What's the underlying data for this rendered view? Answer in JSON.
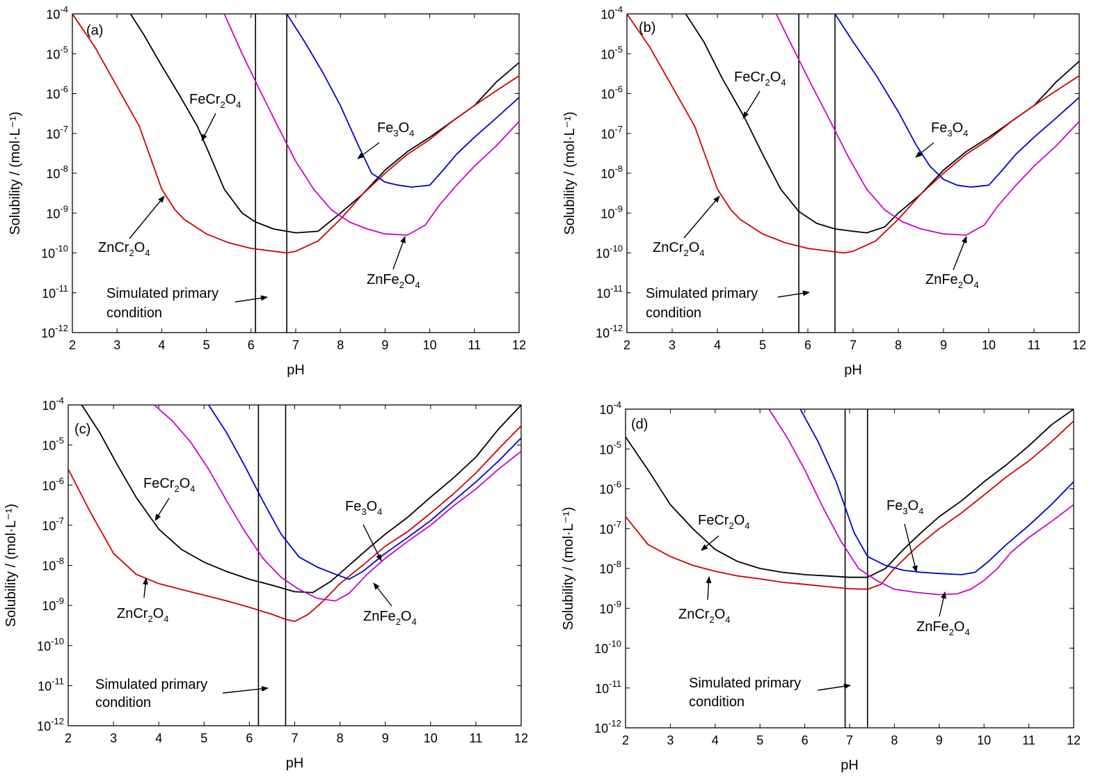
{
  "chart_data": [
    {
      "type": "line",
      "panel": "(a)",
      "xlabel": "pH",
      "ylabel": "Solubility / (mol·L⁻¹)",
      "xlim": [
        2,
        12
      ],
      "ylim": [
        1e-12,
        0.0001
      ],
      "y_scale": "log",
      "x_ticks": [
        "2",
        "3",
        "4",
        "5",
        "6",
        "7",
        "8",
        "9",
        "10",
        "11",
        "12"
      ],
      "y_ticks": [
        "10-12",
        "10-11",
        "10-10",
        "10-9",
        "10-8",
        "10-7",
        "10-6",
        "10-5",
        "10-4"
      ],
      "vlines": [
        6.1,
        6.8
      ],
      "series": [
        {
          "name": "FeCr2O4",
          "color": "#000000",
          "x": [
            3.3,
            3.6,
            4,
            4.4,
            4.8,
            5.1,
            5.4,
            5.8,
            6.1,
            6.5,
            7,
            7.5,
            8,
            8.5,
            9,
            9.5,
            10,
            10.5,
            11,
            11.5,
            12
          ],
          "y": [
            0.0001,
            3e-05,
            5e-06,
            9e-07,
            1.5e-07,
            2.5e-08,
            4e-09,
            1e-09,
            6e-10,
            4e-10,
            3.2e-10,
            3.5e-10,
            1e-09,
            3e-09,
            1.2e-08,
            3.5e-08,
            8e-08,
            2e-07,
            5e-07,
            2e-06,
            6e-06
          ]
        },
        {
          "name": "ZnCr2O4",
          "color": "#cc0000",
          "x": [
            2,
            2.5,
            3,
            3.5,
            4,
            4.3,
            4.5,
            5,
            5.5,
            6,
            6.5,
            6.8,
            7,
            7.5,
            8,
            8.5,
            9,
            9.5,
            10,
            10.5,
            11,
            11.5,
            12
          ],
          "y": [
            0.0001,
            1.5e-05,
            1.5e-06,
            1.5e-07,
            4e-09,
            1.2e-09,
            7e-10,
            3e-10,
            1.8e-10,
            1.3e-10,
            1.1e-10,
            1e-10,
            1.1e-10,
            2e-10,
            7e-10,
            3e-09,
            1e-08,
            3e-08,
            7e-08,
            2e-07,
            5e-07,
            1.2e-06,
            2.8e-06
          ]
        },
        {
          "name": "ZnFe2O4",
          "color": "#cc00cc",
          "x": [
            5.4,
            5.8,
            6.2,
            6.6,
            7,
            7.4,
            7.8,
            8.2,
            8.6,
            9,
            9.5,
            9.9,
            10.2,
            10.6,
            11,
            11.5,
            12
          ],
          "y": [
            0.0001,
            1e-05,
            1.2e-06,
            1.5e-07,
            2e-08,
            4e-09,
            1.2e-09,
            6e-10,
            4e-10,
            3e-10,
            2.8e-10,
            5e-10,
            1.5e-09,
            5e-09,
            1.5e-08,
            5e-08,
            2e-07
          ]
        },
        {
          "name": "Fe3O4",
          "color": "#0000cc",
          "x": [
            6.8,
            7.2,
            7.6,
            8,
            8.4,
            8.7,
            9,
            9.3,
            9.6,
            10,
            10.3,
            10.6,
            11,
            11.5,
            12
          ],
          "y": [
            0.0001,
            2e-05,
            3.5e-06,
            5e-07,
            5e-08,
            1e-08,
            6e-09,
            5e-09,
            4.5e-09,
            5e-09,
            1.2e-08,
            3e-08,
            8e-08,
            2.5e-07,
            8e-07
          ]
        }
      ],
      "annotations": {
        "fecr2o4": {
          "main": "FeCr",
          "s1": "2",
          "mid": "O",
          "s2": "4"
        },
        "fe3o4": {
          "main": "Fe",
          "s1": "3",
          "mid": "O",
          "s2": "4"
        },
        "zncr2o4": {
          "main": "ZnCr",
          "s1": "2",
          "mid": "O",
          "s2": "4"
        },
        "znfe2o4": {
          "main": "ZnFe",
          "s1": "2",
          "mid": "O",
          "s2": "4"
        },
        "simulated_line1": "Simulated primary",
        "simulated_line2": "condition"
      }
    },
    {
      "type": "line",
      "panel": "(b)",
      "xlabel": "pH",
      "ylabel": "Solubility / (mol·L⁻¹)",
      "xlim": [
        2,
        12
      ],
      "ylim": [
        1e-12,
        0.0001
      ],
      "y_scale": "log",
      "x_ticks": [
        "2",
        "3",
        "4",
        "5",
        "6",
        "7",
        "8",
        "9",
        "10",
        "11",
        "12"
      ],
      "y_ticks": [
        "10-12",
        "10-11",
        "10-10",
        "10-9",
        "10-8",
        "10-7",
        "10-6",
        "10-5",
        "10-4"
      ],
      "vlines": [
        5.8,
        6.6
      ],
      "series": [
        {
          "name": "FeCr2O4",
          "color": "#000000",
          "x": [
            3.3,
            3.7,
            4.1,
            4.6,
            5,
            5.4,
            5.8,
            6.2,
            6.6,
            7,
            7.3,
            7.7,
            8,
            8.5,
            9,
            9.5,
            10,
            10.5,
            11,
            11.5,
            12
          ],
          "y": [
            0.0001,
            2e-05,
            2.5e-06,
            2.5e-07,
            3e-08,
            4e-09,
            1.1e-09,
            5.5e-10,
            4e-10,
            3.5e-10,
            3.2e-10,
            4.5e-10,
            1e-09,
            3e-09,
            1.2e-08,
            3.5e-08,
            8e-08,
            2e-07,
            5e-07,
            2e-06,
            6.5e-06
          ]
        },
        {
          "name": "ZnCr2O4",
          "color": "#cc0000",
          "x": [
            2,
            2.5,
            3,
            3.5,
            4,
            4.3,
            4.5,
            5,
            5.5,
            6,
            6.5,
            6.8,
            7,
            7.5,
            8,
            8.5,
            9,
            9.5,
            10,
            10.5,
            11,
            11.5,
            12
          ],
          "y": [
            0.0001,
            1.5e-05,
            1.5e-06,
            1.5e-07,
            4e-09,
            1.2e-09,
            7e-10,
            3e-10,
            1.8e-10,
            1.3e-10,
            1.1e-10,
            1e-10,
            1.1e-10,
            2e-10,
            7e-10,
            3e-09,
            1e-08,
            3e-08,
            7e-08,
            2e-07,
            5e-07,
            1.2e-06,
            2.8e-06
          ]
        },
        {
          "name": "ZnFe2O4",
          "color": "#cc00cc",
          "x": [
            5.3,
            5.7,
            6.1,
            6.5,
            6.9,
            7.3,
            7.7,
            8.1,
            8.5,
            9,
            9.5,
            9.9,
            10.2,
            10.6,
            11,
            11.5,
            12
          ],
          "y": [
            0.0001,
            1.2e-05,
            1.5e-06,
            2e-07,
            2.5e-08,
            4e-09,
            1.2e-09,
            6e-10,
            4e-10,
            3e-10,
            2.8e-10,
            5e-10,
            1.5e-09,
            5e-09,
            1.5e-08,
            5e-08,
            2e-07
          ]
        },
        {
          "name": "Fe3O4",
          "color": "#0000cc",
          "x": [
            6.6,
            7,
            7.5,
            8,
            8.4,
            8.7,
            9,
            9.3,
            9.6,
            10,
            10.3,
            10.6,
            11,
            11.5,
            12
          ],
          "y": [
            0.0001,
            2e-05,
            3e-06,
            3.5e-07,
            5e-08,
            1.5e-08,
            7e-09,
            5e-09,
            4.5e-09,
            5e-09,
            1.2e-08,
            3e-08,
            8e-08,
            2.5e-07,
            8e-07
          ]
        }
      ],
      "annotations": {
        "fecr2o4": {
          "main": "FeCr",
          "s1": "2",
          "mid": "O",
          "s2": "4"
        },
        "fe3o4": {
          "main": "Fe",
          "s1": "3",
          "mid": "O",
          "s2": "4"
        },
        "zncr2o4": {
          "main": "ZnCr",
          "s1": "2",
          "mid": "O",
          "s2": "4"
        },
        "znfe2o4": {
          "main": "ZnFe",
          "s1": "2",
          "mid": "O",
          "s2": "4"
        },
        "simulated_line1": "Simulated primary",
        "simulated_line2": "condition"
      }
    },
    {
      "type": "line",
      "panel": "(c)",
      "xlabel": "pH",
      "ylabel": "Solubility / (mol·L⁻¹)",
      "xlim": [
        2,
        12
      ],
      "ylim": [
        1e-12,
        0.0001
      ],
      "y_scale": "log",
      "x_ticks": [
        "2",
        "3",
        "4",
        "5",
        "6",
        "7",
        "8",
        "9",
        "10",
        "11",
        "12"
      ],
      "y_ticks": [
        "10-12",
        "10-11",
        "10-10",
        "10-9",
        "10-8",
        "10-7",
        "10-6",
        "10-5",
        "10-4"
      ],
      "vlines": [
        6.2,
        6.8
      ],
      "series": [
        {
          "name": "FeCr2O4",
          "color": "#000000",
          "x": [
            2.3,
            2.7,
            3.1,
            3.5,
            4,
            4.5,
            5,
            5.5,
            6,
            6.5,
            7,
            7.4,
            7.8,
            8.2,
            8.6,
            9,
            9.5,
            10,
            10.5,
            11,
            11.5,
            12
          ],
          "y": [
            0.0001,
            2e-05,
            3e-06,
            5e-07,
            8e-08,
            2.5e-08,
            1.2e-08,
            7e-09,
            4.5e-09,
            3.2e-09,
            2.2e-09,
            2.1e-09,
            4e-09,
            1e-08,
            2.5e-08,
            6e-08,
            1.6e-07,
            5e-07,
            1.5e-06,
            5e-06,
            2.5e-05,
            0.0001
          ]
        },
        {
          "name": "ZnCr2O4",
          "color": "#cc0000",
          "x": [
            2,
            2.5,
            3,
            3.5,
            4,
            4.5,
            5,
            5.5,
            6,
            6.5,
            6.8,
            7,
            7.3,
            7.6,
            8,
            8.5,
            9,
            9.5,
            10,
            10.5,
            11,
            11.5,
            12
          ],
          "y": [
            2.5e-06,
            2e-07,
            2e-08,
            6e-09,
            3.5e-09,
            2.5e-09,
            1.8e-09,
            1.3e-09,
            9e-10,
            6e-10,
            4.5e-10,
            4e-10,
            6e-10,
            1.2e-09,
            3.5e-09,
            1e-08,
            3e-08,
            7e-08,
            2e-07,
            6e-07,
            2e-06,
            8e-06,
            3e-05
          ]
        },
        {
          "name": "ZnFe2O4",
          "color": "#cc00cc",
          "x": [
            3.9,
            4.3,
            4.7,
            5.1,
            5.5,
            5.9,
            6.3,
            6.7,
            7.1,
            7.5,
            7.9,
            8.2,
            8.6,
            9,
            9.5,
            10,
            10.5,
            11,
            11.5,
            12
          ],
          "y": [
            0.0001,
            4e-05,
            1.2e-05,
            2.5e-06,
            4e-07,
            7e-08,
            1.5e-08,
            5e-09,
            2.5e-09,
            1.5e-09,
            1.3e-09,
            2e-09,
            6e-09,
            1.5e-08,
            4e-08,
            1e-07,
            3e-07,
            8e-07,
            2.5e-06,
            7e-06
          ]
        },
        {
          "name": "Fe3O4",
          "color": "#0000cc",
          "x": [
            5.1,
            5.5,
            5.9,
            6.3,
            6.7,
            7.1,
            7.5,
            7.9,
            8.2,
            8.5,
            9,
            9.5,
            10,
            10.5,
            11,
            11.5,
            12
          ],
          "y": [
            0.0001,
            2e-05,
            3e-06,
            4e-07,
            6e-08,
            1.6e-08,
            9e-09,
            6e-09,
            4.5e-09,
            7e-09,
            2e-08,
            5e-08,
            1.3e-07,
            4e-07,
            1.2e-06,
            4e-06,
            1.5e-05
          ]
        }
      ],
      "annotations": {
        "fecr2o4": {
          "main": "FeCr",
          "s1": "2",
          "mid": "O",
          "s2": "4"
        },
        "fe3o4": {
          "main": "Fe",
          "s1": "3",
          "mid": "O",
          "s2": "4"
        },
        "zncr2o4": {
          "main": "ZnCr",
          "s1": "2",
          "mid": "O",
          "s2": "4"
        },
        "znfe2o4": {
          "main": "ZnFe",
          "s1": "2",
          "mid": "O",
          "s2": "4"
        },
        "simulated_line1": "Simulated primary",
        "simulated_line2": "condition"
      }
    },
    {
      "type": "line",
      "panel": "(d)",
      "xlabel": "pH",
      "ylabel": "Solubility / (mol·L⁻¹)",
      "xlim": [
        2,
        12
      ],
      "ylim": [
        1e-12,
        0.0001
      ],
      "y_scale": "log",
      "x_ticks": [
        "2",
        "3",
        "4",
        "5",
        "6",
        "7",
        "8",
        "9",
        "10",
        "11",
        "12"
      ],
      "y_ticks": [
        "10-12",
        "10-11",
        "10-10",
        "10-9",
        "10-8",
        "10-7",
        "10-6",
        "10-5",
        "10-4"
      ],
      "vlines": [
        6.9,
        7.4
      ],
      "series": [
        {
          "name": "FeCr2O4",
          "color": "#000000",
          "x": [
            2,
            2.5,
            3,
            3.5,
            4,
            4.5,
            5,
            5.5,
            6,
            6.5,
            7,
            7.4,
            7.8,
            8.2,
            8.6,
            9,
            9.5,
            10,
            10.5,
            11,
            11.5,
            12
          ],
          "y": [
            2e-05,
            3e-06,
            4e-07,
            1e-07,
            3e-08,
            1.5e-08,
            1e-08,
            8e-09,
            7e-09,
            6.5e-09,
            6e-09,
            6e-09,
            1e-08,
            3e-08,
            8e-08,
            2e-07,
            5e-07,
            1.5e-06,
            4e-06,
            1.2e-05,
            4e-05,
            0.0001
          ]
        },
        {
          "name": "ZnCr2O4",
          "color": "#cc0000",
          "x": [
            2,
            2.5,
            3,
            3.5,
            4,
            4.5,
            5,
            5.5,
            6,
            6.5,
            7,
            7.4,
            7.7,
            8,
            8.5,
            9,
            9.5,
            10,
            10.5,
            11,
            11.5,
            12
          ],
          "y": [
            2e-07,
            4e-08,
            2e-08,
            1.2e-08,
            8.5e-09,
            6.5e-09,
            5.5e-09,
            4.5e-09,
            4e-09,
            3.5e-09,
            3.1e-09,
            3e-09,
            4e-09,
            1e-08,
            3.5e-08,
            1e-07,
            2.5e-07,
            7e-07,
            2e-06,
            5e-06,
            1.5e-05,
            5e-05
          ]
        },
        {
          "name": "ZnFe2O4",
          "color": "#cc00cc",
          "x": [
            5.2,
            5.6,
            6,
            6.4,
            6.8,
            7.2,
            7.6,
            8,
            8.5,
            9,
            9.4,
            9.7,
            10,
            10.3,
            10.6,
            11,
            11.5,
            12
          ],
          "y": [
            0.0001,
            2e-05,
            3e-06,
            3.5e-07,
            5e-08,
            1e-08,
            5e-09,
            3e-09,
            2.5e-09,
            2.2e-09,
            2.3e-09,
            3e-09,
            5e-09,
            1e-08,
            2.5e-08,
            6e-08,
            1.5e-07,
            4e-07
          ]
        },
        {
          "name": "Fe3O4",
          "color": "#0000cc",
          "x": [
            5.9,
            6.3,
            6.7,
            7.1,
            7.4,
            7.8,
            8.2,
            8.6,
            9,
            9.5,
            9.8,
            10.1,
            10.5,
            11,
            11.5,
            12
          ],
          "y": [
            0.0001,
            1.5e-05,
            1.5e-06,
            8e-08,
            2e-08,
            1.2e-08,
            9e-09,
            8e-09,
            7.5e-09,
            7e-09,
            8e-09,
            1.5e-08,
            4e-08,
            1.2e-07,
            4e-07,
            1.5e-06
          ]
        }
      ],
      "annotations": {
        "fecr2o4": {
          "main": "FeCr",
          "s1": "2",
          "mid": "O",
          "s2": "4"
        },
        "fe3o4": {
          "main": "Fe",
          "s1": "3",
          "mid": "O",
          "s2": "4"
        },
        "zncr2o4": {
          "main": "ZnCr",
          "s1": "2",
          "mid": "O",
          "s2": "4"
        },
        "znfe2o4": {
          "main": "ZnFe",
          "s1": "2",
          "mid": "O",
          "s2": "4"
        },
        "simulated_line1": "Simulated primary",
        "simulated_line2": "condition"
      }
    }
  ]
}
